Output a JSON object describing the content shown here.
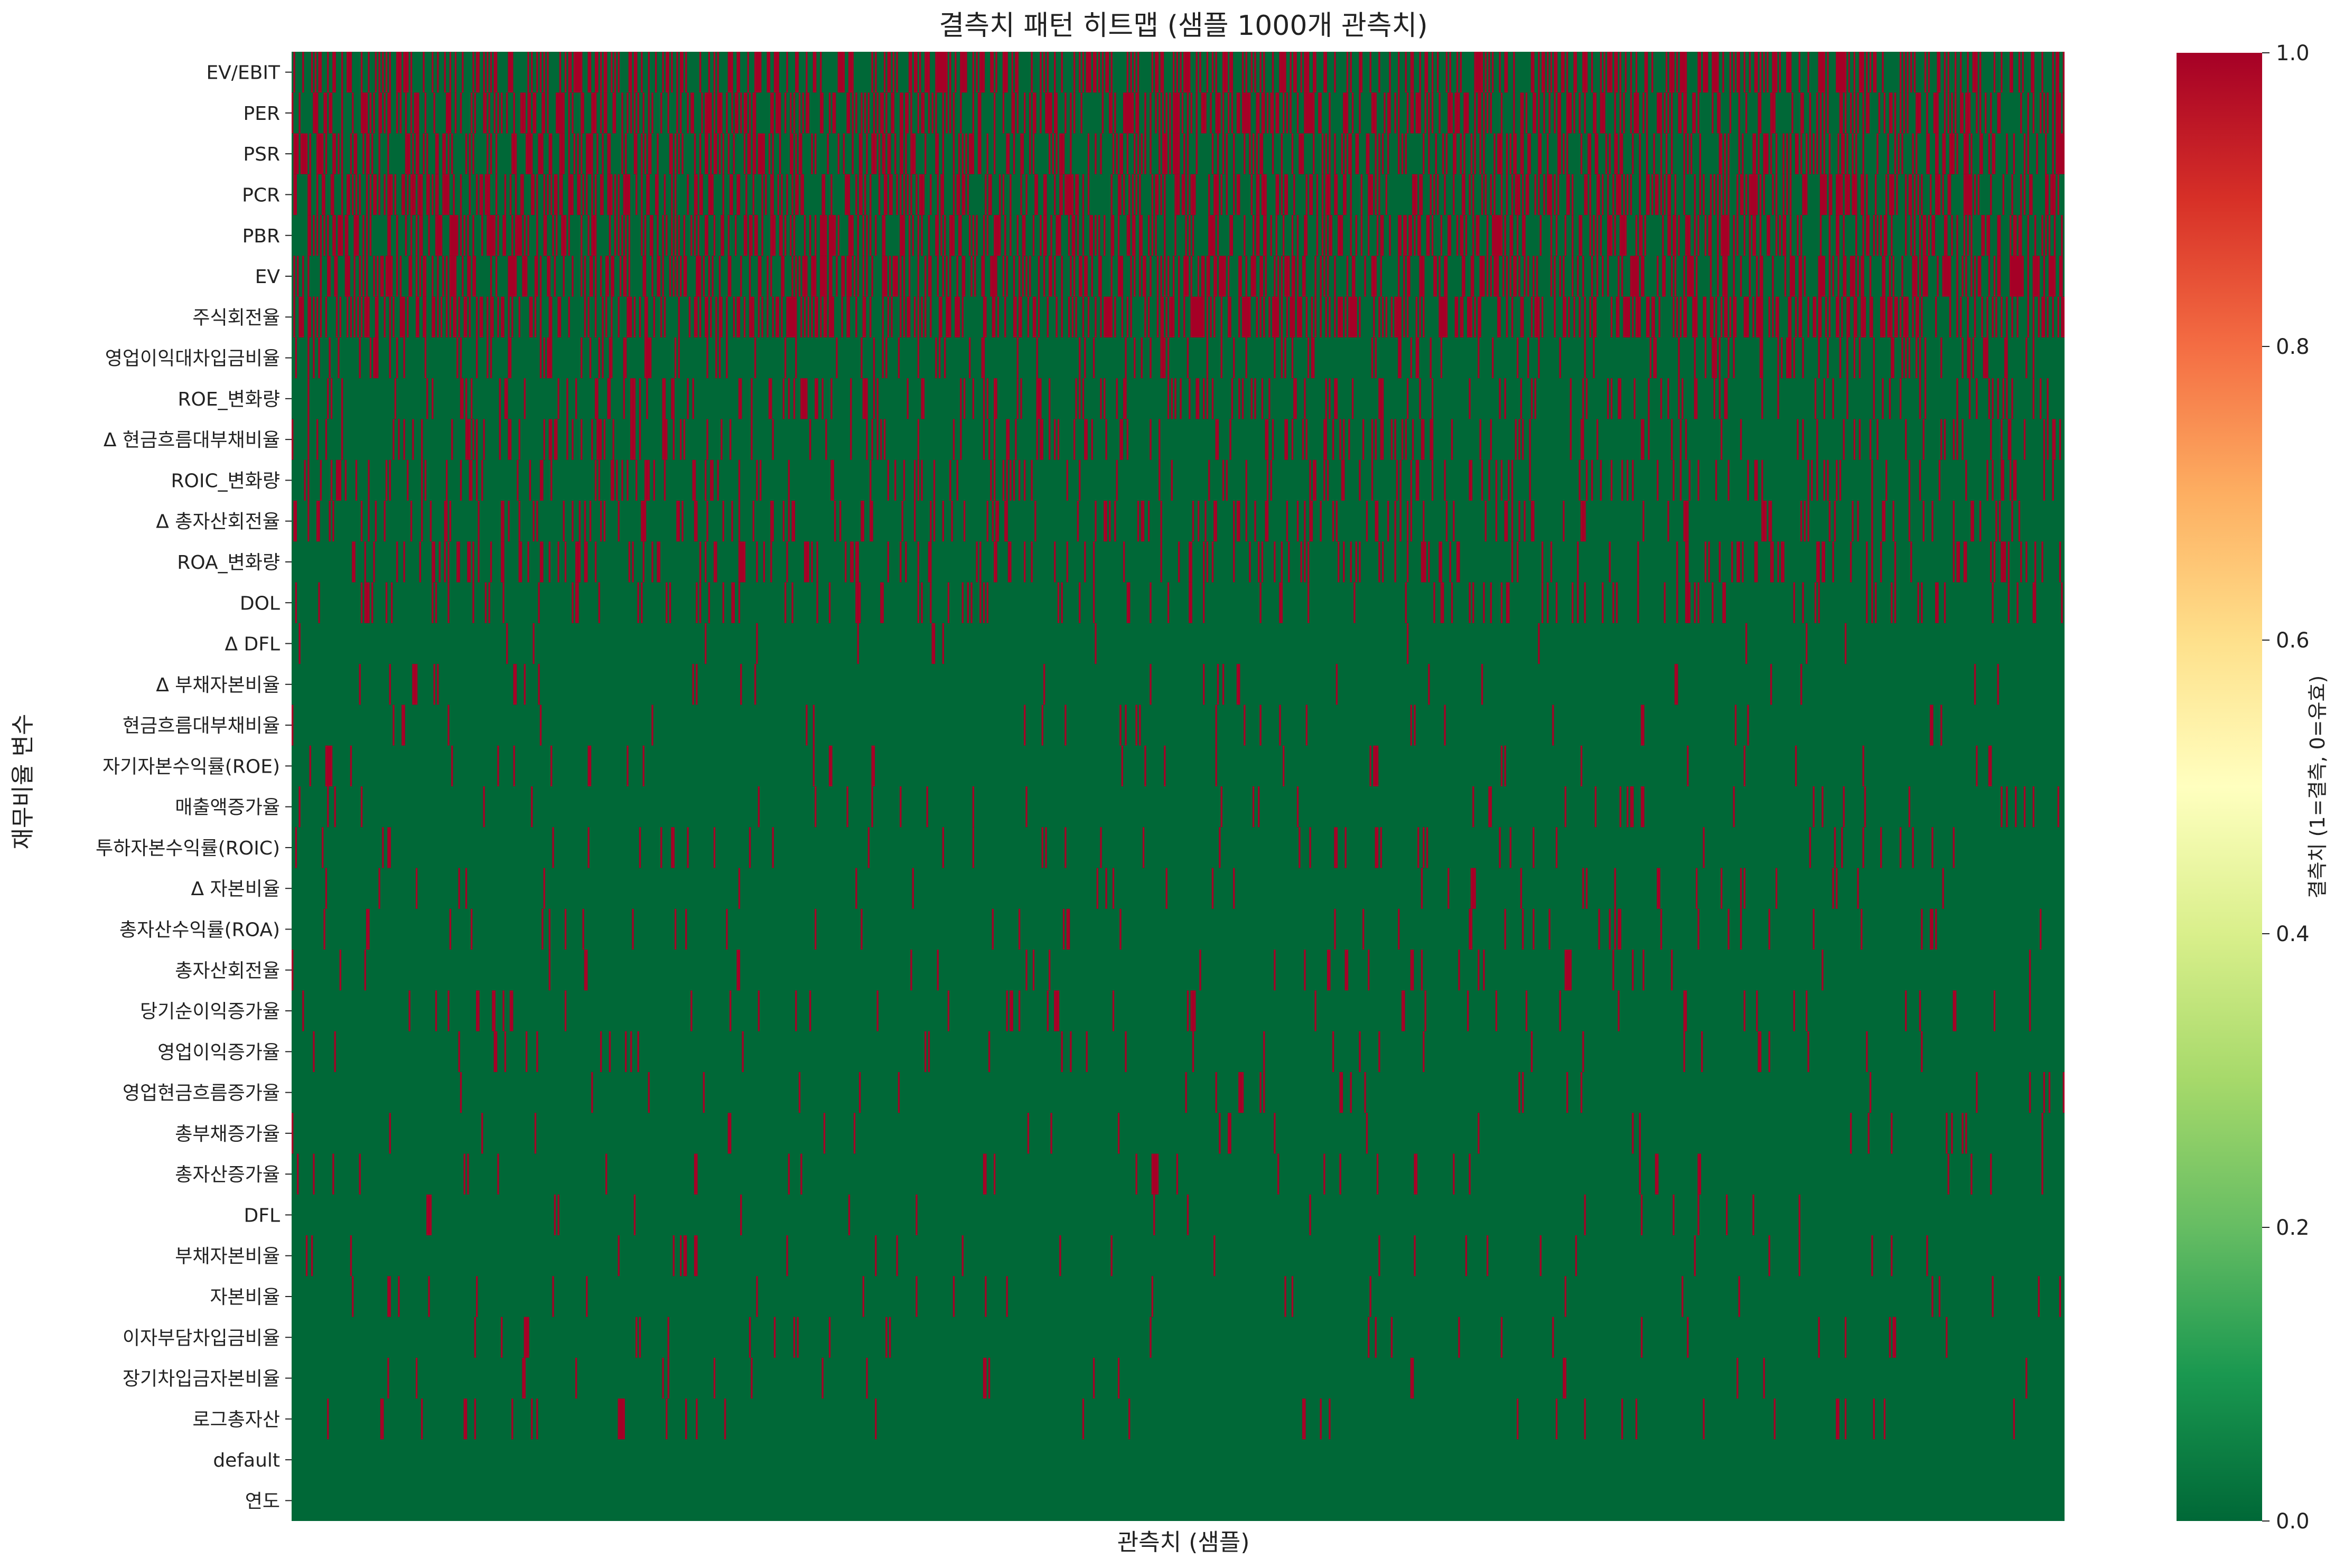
{
  "chart_data": {
    "type": "heatmap",
    "title": "결측치 패턴 히트맵 (샘플 1000개 관측치)",
    "xlabel": "관측치 (샘플)",
    "ylabel": "재무비율 변수",
    "n_observations": 1000,
    "y_categories": [
      "EV/EBIT",
      "PER",
      "PSR",
      "PCR",
      "PBR",
      "EV",
      "주식회전율",
      "영업이익대차입금비율",
      "ROE_변화량",
      "Δ 현금흐름대부채비율",
      "ROIC_변화량",
      "Δ 총자산회전율",
      "ROA_변화량",
      "DOL",
      "Δ DFL",
      "Δ 부채자본비율",
      "현금흐름대부채비율",
      "자기자본수익률(ROE)",
      "매출액증가율",
      "투하자본수익률(ROIC)",
      "Δ 자본비율",
      "총자산수익률(ROA)",
      "총자산회전율",
      "당기순이익증가율",
      "영업이익증가율",
      "영업현금흐름증가율",
      "총부채증가율",
      "총자산증가율",
      "DFL",
      "부채자본비율",
      "자본비율",
      "이자부담차입금비율",
      "장기차입금자본비율",
      "로그총자산",
      "default",
      "연도"
    ],
    "missing_rate_by_variable": [
      0.42,
      0.41,
      0.41,
      0.41,
      0.41,
      0.41,
      0.41,
      0.17,
      0.15,
      0.15,
      0.15,
      0.15,
      0.15,
      0.1,
      0.02,
      0.03,
      0.03,
      0.03,
      0.03,
      0.03,
      0.03,
      0.03,
      0.03,
      0.03,
      0.03,
      0.03,
      0.03,
      0.03,
      0.02,
      0.02,
      0.02,
      0.02,
      0.02,
      0.02,
      0.0,
      0.0
    ],
    "colorbar": {
      "label": "결측치 (1=결측, 0=유효)",
      "min": 0.0,
      "max": 1.0,
      "ticks": [
        "0.0",
        "0.2",
        "0.4",
        "0.6",
        "0.8",
        "1.0"
      ],
      "colormap": "RdYlGn_r"
    },
    "colors": {
      "valid": "#006837",
      "missing": "#a50026"
    }
  }
}
